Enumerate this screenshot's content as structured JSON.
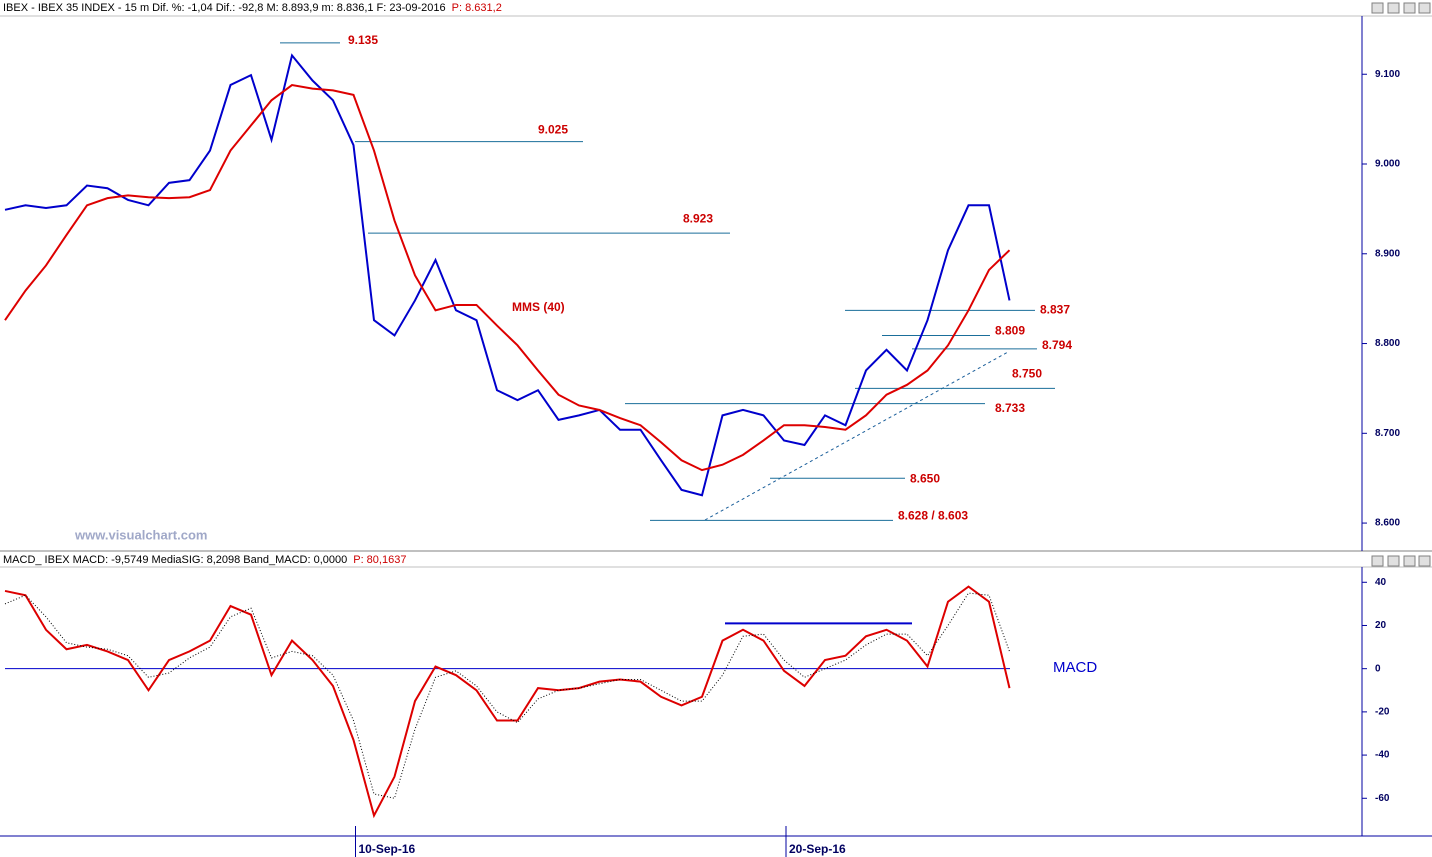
{
  "chart_data": [
    {
      "type": "line",
      "title": "IBEX - IBEX 35 INDEX - 15 m  Dif. %: -1,04  Dif.: -92,8  M: 8.893,9  m: 8.836,1  F: 23-09-2016",
      "subtitle": "P: 8.631,2",
      "watermark": "www.visualchart.com",
      "ylim": [
        8.57,
        9.166
      ],
      "yticks": [
        {
          "value": 8.6,
          "label": "8.600"
        },
        {
          "value": 8.7,
          "label": "8.700"
        },
        {
          "value": 8.8,
          "label": "8.800"
        },
        {
          "value": 8.9,
          "label": "8.900"
        },
        {
          "value": 9.0,
          "label": "9.000"
        },
        {
          "value": 9.1,
          "label": "9.100"
        }
      ],
      "levels": [
        9.135,
        9.025,
        8.923,
        8.837,
        8.809,
        8.794,
        {
          "value": 8.75,
          "label": "8.750"
        },
        8.733,
        {
          "value": 8.65,
          "label": "8.650"
        },
        {
          "value": 8.603,
          "label": "8.628 / 8.603"
        }
      ],
      "series": [
        {
          "color": "#0000cc",
          "values": [
            8.949,
            8.954,
            8.951,
            8.954,
            8.976,
            8.973,
            8.96,
            8.954,
            8.979,
            8.982,
            9.015,
            9.088,
            9.099,
            9.027,
            9.121,
            9.093,
            9.071,
            9.021,
            8.826,
            8.809,
            8.848,
            8.893,
            8.837,
            8.826,
            8.748,
            8.737,
            8.748,
            8.715,
            8.72,
            8.726,
            8.704,
            8.704,
            8.67,
            8.637,
            8.631,
            8.72,
            8.726,
            8.72,
            8.692,
            8.687,
            8.72,
            8.709,
            8.77,
            8.793,
            8.77,
            8.826,
            8.904,
            8.954,
            8.954,
            8.848
          ]
        },
        {
          "name": "MMS (40)",
          "color": "#dd0000",
          "values": [
            8.826,
            8.859,
            8.887,
            8.921,
            8.954,
            8.962,
            8.965,
            8.963,
            8.962,
            8.963,
            8.971,
            9.015,
            9.043,
            9.071,
            9.088,
            9.084,
            9.082,
            9.077,
            9.015,
            8.937,
            8.876,
            8.837,
            8.843,
            8.843,
            8.82,
            8.798,
            8.77,
            8.743,
            8.731,
            8.726,
            8.717,
            8.709,
            8.69,
            8.67,
            8.659,
            8.665,
            8.676,
            8.692,
            8.709,
            8.709,
            8.707,
            8.704,
            8.72,
            8.743,
            8.754,
            8.77,
            8.798,
            8.837,
            8.882,
            8.904
          ]
        }
      ]
    },
    {
      "type": "line",
      "title": "MACD_ IBEX MACD: -9,5749  MediaSIG: 8,2098  Band_MACD: 0,0000",
      "subtitle": "P: 80,1637",
      "categories": [
        null,
        null,
        null,
        null,
        null,
        null,
        null,
        null,
        null,
        null,
        null,
        null,
        null,
        null,
        null,
        null,
        null,
        "10-Sep-16",
        null,
        null,
        null,
        null,
        null,
        null,
        null,
        null,
        null,
        null,
        null,
        null,
        null,
        null,
        null,
        null,
        null,
        null,
        null,
        null,
        "20-Sep-16",
        null,
        null,
        null,
        null,
        null,
        null,
        null,
        null,
        null,
        null,
        null
      ],
      "ylim": [
        -77,
        48
      ],
      "yticks": [
        40,
        20,
        0,
        -20,
        -40,
        -60
      ],
      "band": 0,
      "resistance": 21,
      "series": [
        {
          "name": "MACD",
          "color": "#dd0000",
          "values": [
            36,
            34,
            18,
            9,
            11,
            8,
            4,
            -10,
            4,
            8,
            13,
            29,
            25,
            -3,
            13,
            4,
            -8,
            -33,
            -68,
            -50,
            -15,
            1,
            -3,
            -10,
            -24,
            -24,
            -9,
            -10,
            -9,
            -6,
            -5,
            -6,
            -13,
            -17,
            -13,
            13,
            18,
            13,
            -1,
            -8,
            4,
            6,
            15,
            18,
            13,
            1,
            31,
            38,
            31,
            -9
          ]
        },
        {
          "color": "#000000",
          "dashed": true,
          "values": [
            30,
            34,
            24,
            12,
            10,
            9,
            6,
            -4,
            -2,
            5,
            10,
            24,
            28,
            5,
            8,
            6,
            -3,
            -24,
            -58,
            -60,
            -28,
            -4,
            -1,
            -8,
            -20,
            -25,
            -14,
            -10,
            -9,
            -7,
            -5,
            -5,
            -10,
            -15,
            -15,
            -3,
            15,
            16,
            4,
            -4,
            0,
            4,
            11,
            16,
            16,
            6,
            20,
            35,
            34,
            8
          ]
        }
      ]
    }
  ]
}
